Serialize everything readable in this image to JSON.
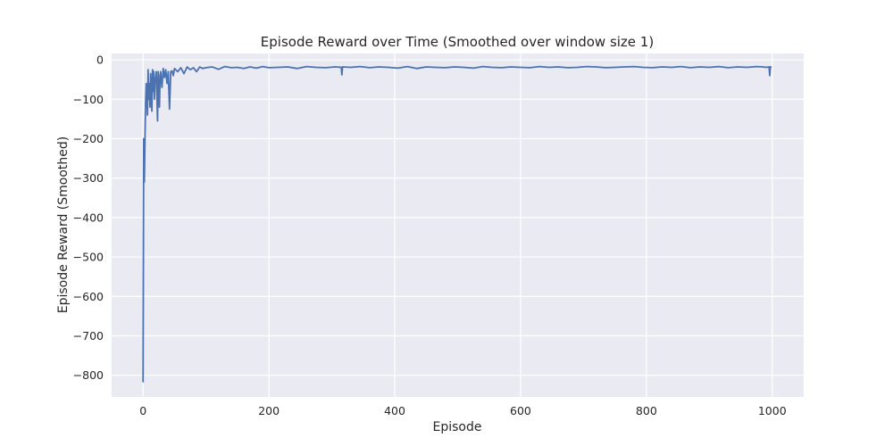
{
  "chart_data": {
    "type": "line",
    "title": "Episode Reward over Time (Smoothed over window size 1)",
    "xlabel": "Episode",
    "ylabel": "Episode Reward (Smoothed)",
    "xlim": [
      -50,
      1050
    ],
    "ylim": [
      -855,
      16
    ],
    "xticks": [
      0,
      200,
      400,
      600,
      800,
      1000
    ],
    "yticks": [
      0,
      -100,
      -200,
      -300,
      -400,
      -500,
      -600,
      -700,
      -800
    ],
    "grid": true,
    "background": "#eaeaf2",
    "series": [
      {
        "color": "#4c72b0",
        "x": [
          0,
          1,
          2,
          3,
          4,
          5,
          6,
          7,
          8,
          9,
          10,
          11,
          12,
          13,
          14,
          15,
          16,
          17,
          18,
          19,
          20,
          21,
          22,
          23,
          24,
          25,
          26,
          27,
          28,
          29,
          30,
          32,
          34,
          36,
          38,
          40,
          42,
          44,
          46,
          48,
          50,
          55,
          60,
          65,
          70,
          75,
          80,
          85,
          90,
          95,
          100,
          110,
          120,
          130,
          140,
          150,
          160,
          170,
          180,
          190,
          200,
          215,
          230,
          245,
          260,
          275,
          290,
          305,
          315,
          316,
          317,
          330,
          345,
          360,
          375,
          390,
          405,
          420,
          435,
          450,
          465,
          480,
          495,
          510,
          525,
          540,
          555,
          570,
          585,
          600,
          615,
          630,
          645,
          660,
          675,
          690,
          705,
          720,
          735,
          750,
          765,
          780,
          795,
          810,
          825,
          840,
          855,
          870,
          885,
          900,
          915,
          930,
          945,
          960,
          975,
          985,
          990,
          995,
          996,
          997,
          999
        ],
        "y": [
          -818,
          -200,
          -310,
          -205,
          -110,
          -60,
          -95,
          -140,
          -25,
          -100,
          -60,
          -120,
          -35,
          -90,
          -130,
          -25,
          -80,
          -30,
          -100,
          -50,
          -45,
          -30,
          -95,
          -155,
          -30,
          -85,
          -120,
          -40,
          -30,
          -55,
          -70,
          -22,
          -45,
          -25,
          -60,
          -30,
          -125,
          -30,
          -28,
          -40,
          -22,
          -30,
          -20,
          -35,
          -18,
          -25,
          -20,
          -30,
          -18,
          -22,
          -20,
          -18,
          -24,
          -17,
          -20,
          -19,
          -22,
          -18,
          -21,
          -17,
          -20,
          -19,
          -18,
          -22,
          -17,
          -19,
          -20,
          -18,
          -19,
          -38,
          -18,
          -19,
          -17,
          -20,
          -18,
          -19,
          -21,
          -17,
          -22,
          -18,
          -19,
          -20,
          -18,
          -19,
          -21,
          -17,
          -19,
          -20,
          -18,
          -19,
          -20,
          -17,
          -19,
          -18,
          -20,
          -19,
          -17,
          -18,
          -20,
          -19,
          -18,
          -17,
          -19,
          -20,
          -18,
          -19,
          -17,
          -20,
          -18,
          -19,
          -17,
          -20,
          -18,
          -19,
          -17,
          -18,
          -19,
          -18,
          -40,
          -18,
          -18
        ]
      }
    ]
  }
}
